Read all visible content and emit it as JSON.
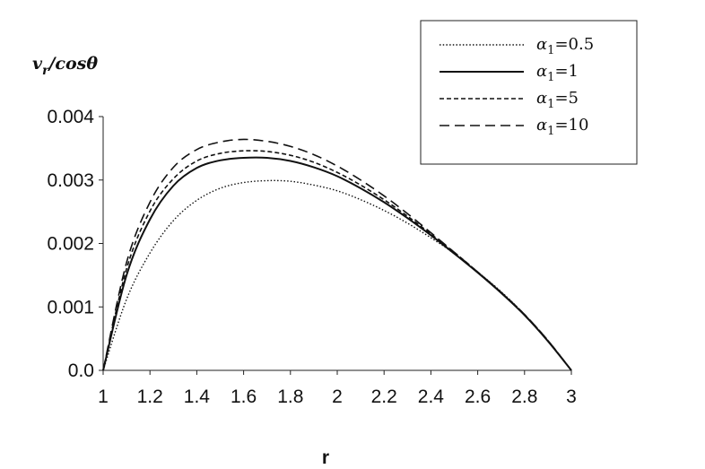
{
  "chart_data": {
    "type": "line",
    "title": "",
    "xlabel": "r",
    "ylabel_parts": {
      "base": "v",
      "sub": "r",
      "rest": "/cosθ"
    },
    "xlim": [
      1,
      3
    ],
    "ylim": [
      0,
      0.004
    ],
    "x_ticks": [
      1,
      1.2,
      1.4,
      1.6,
      1.8,
      2,
      2.2,
      2.4,
      2.6,
      2.8,
      3
    ],
    "x_tick_labels": [
      "1",
      "1.2",
      "1.4",
      "1.6",
      "1.8",
      "2",
      "2.2",
      "2.4",
      "2.6",
      "2.8",
      "3"
    ],
    "y_ticks": [
      0,
      0.001,
      0.002,
      0.003,
      0.004
    ],
    "y_tick_labels": [
      "0.0",
      "0.001",
      "0.002",
      "0.003",
      "0.004"
    ],
    "grid": false,
    "legend_position": "top-right",
    "x": [
      1.0,
      1.1,
      1.2,
      1.3,
      1.4,
      1.5,
      1.6,
      1.7,
      1.8,
      1.9,
      2.0,
      2.1,
      2.2,
      2.3,
      2.4,
      2.5,
      2.6,
      2.7,
      2.8,
      2.9,
      3.0
    ],
    "series": [
      {
        "name": "α1=0.5",
        "legend_symbol": "α",
        "legend_sub": "1",
        "legend_value": "=0.5",
        "dash": "dotted",
        "values": [
          0,
          0.00112,
          0.00185,
          0.00236,
          0.00268,
          0.00287,
          0.00296,
          0.00299,
          0.00298,
          0.00292,
          0.00283,
          0.00269,
          0.00252,
          0.00232,
          0.00209,
          0.00184,
          0.00155,
          0.00124,
          0.00088,
          0.00047,
          0
        ]
      },
      {
        "name": "α1=1",
        "legend_symbol": "α",
        "legend_sub": "1",
        "legend_value": "=1",
        "dash": "solid",
        "values": [
          0,
          0.0015,
          0.00238,
          0.00291,
          0.00319,
          0.00331,
          0.00335,
          0.00335,
          0.0033,
          0.0032,
          0.00306,
          0.00287,
          0.00265,
          0.0024,
          0.00213,
          0.00184,
          0.00154,
          0.00122,
          0.00087,
          0.00046,
          0
        ]
      },
      {
        "name": "α1=5",
        "legend_symbol": "α",
        "legend_sub": "1",
        "legend_value": "=5",
        "dash": "short-dash",
        "values": [
          0,
          0.0016,
          0.00251,
          0.00302,
          0.0033,
          0.00342,
          0.00346,
          0.00345,
          0.00339,
          0.00328,
          0.00312,
          0.00292,
          0.00269,
          0.00243,
          0.00215,
          0.00186,
          0.00155,
          0.00123,
          0.00088,
          0.00047,
          0
        ]
      },
      {
        "name": "α1=10",
        "legend_symbol": "α",
        "legend_sub": "1",
        "legend_value": "=10",
        "dash": "long-dash",
        "values": [
          0,
          0.0017,
          0.00265,
          0.0032,
          0.00348,
          0.0036,
          0.00364,
          0.00361,
          0.00353,
          0.0034,
          0.00322,
          0.003,
          0.00275,
          0.00247,
          0.00217,
          0.00186,
          0.00155,
          0.00123,
          0.00088,
          0.00047,
          0
        ]
      }
    ]
  }
}
